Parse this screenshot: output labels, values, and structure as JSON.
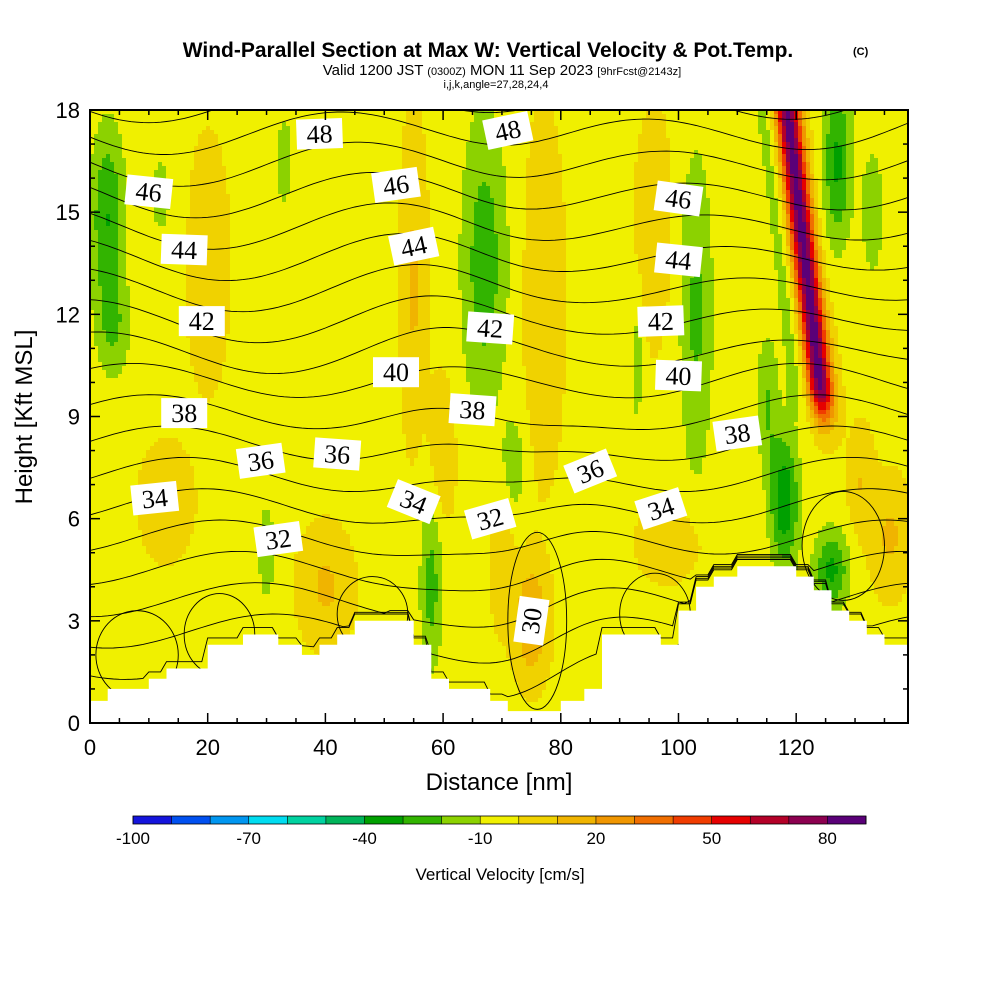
{
  "chart_data": {
    "type": "heatmap",
    "title": "Wind-Parallel Section at Max W: Vertical Velocity & Pot.Temp.",
    "title_mark": "(C)",
    "subtitle_parts": [
      "Valid 1200 JST",
      "(0300Z)",
      "MON 11 Sep 2023",
      "[9hrFcst@2143z]"
    ],
    "subtitle2": "i,j,k,angle=27,28,24,4",
    "xlabel": "Distance [nm]",
    "ylabel": "Height [Kft MSL]",
    "xlim": [
      0,
      139
    ],
    "ylim": [
      0,
      18
    ],
    "x_ticks": [
      0,
      20,
      40,
      60,
      80,
      100,
      120
    ],
    "y_ticks": [
      0,
      3,
      6,
      9,
      12,
      15,
      18
    ],
    "colorbar": {
      "label": "Vertical Velocity [cm/s]",
      "tick_labels": [
        -100,
        -70,
        -40,
        -10,
        20,
        50,
        80
      ],
      "colors": [
        "#1414dc",
        "#0050f0",
        "#0096f0",
        "#00dcf0",
        "#00d2a0",
        "#00b45a",
        "#00a000",
        "#32b400",
        "#8cd200",
        "#f0f000",
        "#f0d200",
        "#f0b400",
        "#f09600",
        "#f06e00",
        "#f03c00",
        "#e60000",
        "#b40028",
        "#8c0050",
        "#5a0078"
      ],
      "range": [
        -100,
        90
      ]
    },
    "background_velocity_cm_s": -2,
    "vertical_velocity_features": [
      {
        "x": 3,
        "y": 14.8,
        "sx": 3,
        "sy": 2.8,
        "w": -28
      },
      {
        "x": 4,
        "y": 11.5,
        "sx": 3,
        "sy": 1.5,
        "w": -15
      },
      {
        "x": 12,
        "y": 15.5,
        "sx": 3,
        "sy": 2.0,
        "w": -10
      },
      {
        "x": 20,
        "y": 13.5,
        "sx": 3,
        "sy": 3.0,
        "w": 12
      },
      {
        "x": 33,
        "y": 16.5,
        "sx": 1.5,
        "sy": 1.5,
        "w": -15
      },
      {
        "x": 55,
        "y": 13.0,
        "sx": 2,
        "sy": 4.0,
        "w": 14
      },
      {
        "x": 67,
        "y": 13.5,
        "sx": 4,
        "sy": 4.5,
        "w": -24
      },
      {
        "x": 72,
        "y": 7.5,
        "sx": 2,
        "sy": 1.5,
        "w": -15
      },
      {
        "x": 77,
        "y": 12.5,
        "sx": 3,
        "sy": 4.5,
        "w": 12
      },
      {
        "x": 75,
        "y": 3.0,
        "sx": 2.5,
        "sy": 1.5,
        "w": 26
      },
      {
        "x": 70,
        "y": 5.0,
        "sx": 2,
        "sy": 2.0,
        "w": 10
      },
      {
        "x": 60,
        "y": 8.0,
        "sx": 2,
        "sy": 2.0,
        "w": 12
      },
      {
        "x": 58,
        "y": 4.0,
        "sx": 2,
        "sy": 2.5,
        "w": -22
      },
      {
        "x": 30,
        "y": 5.0,
        "sx": 2,
        "sy": 2.0,
        "w": -12
      },
      {
        "x": 40,
        "y": 4.0,
        "sx": 4,
        "sy": 1.5,
        "w": 14
      },
      {
        "x": 13,
        "y": 6.5,
        "sx": 4,
        "sy": 1.5,
        "w": 10
      },
      {
        "x": 93,
        "y": 10.5,
        "sx": 1,
        "sy": 2.0,
        "w": -14
      },
      {
        "x": 103,
        "y": 12.0,
        "sx": 3,
        "sy": 5.0,
        "w": -20
      },
      {
        "x": 99,
        "y": 5.3,
        "sx": 5,
        "sy": 1.0,
        "w": 12
      },
      {
        "x": 96,
        "y": 14.5,
        "sx": 3,
        "sy": 3.0,
        "w": 10
      },
      {
        "x": 115,
        "y": 9.5,
        "sx": 2,
        "sy": 2.0,
        "w": -18
      },
      {
        "x": 118,
        "y": 6.5,
        "sx": 2.5,
        "sy": 2.0,
        "w": -36
      },
      {
        "x": 126,
        "y": 4.5,
        "sx": 3,
        "sy": 1.2,
        "w": -30
      },
      {
        "x": 127,
        "y": 16.5,
        "sx": 2.5,
        "sy": 2.5,
        "w": -30
      },
      {
        "x": 133,
        "y": 15.0,
        "sx": 2,
        "sy": 2.0,
        "w": -16
      },
      {
        "x": 136,
        "y": 5.5,
        "sx": 3,
        "sy": 1.5,
        "w": 14
      },
      {
        "x": 131,
        "y": 7.0,
        "sx": 2,
        "sy": 1.5,
        "w": 12
      }
    ],
    "updraft_core": {
      "x_top": 118.5,
      "y_top": 18,
      "x_bottom": 124,
      "y_bottom": 10,
      "max_cm_s": 88
    },
    "isentropes_K": [
      31,
      32,
      33,
      34,
      35,
      36,
      37,
      38,
      39,
      40,
      41,
      42,
      43,
      44,
      45,
      46,
      47,
      48,
      49
    ],
    "contour_labels": [
      {
        "text": "48",
        "x": 39,
        "y": 17.3,
        "angle": -2
      },
      {
        "text": "48",
        "x": 71,
        "y": 17.4,
        "angle": -12
      },
      {
        "text": "46",
        "x": 10,
        "y": 15.6,
        "angle": 6
      },
      {
        "text": "46",
        "x": 52,
        "y": 15.8,
        "angle": -8
      },
      {
        "text": "46",
        "x": 100,
        "y": 15.4,
        "angle": 8
      },
      {
        "text": "44",
        "x": 16,
        "y": 13.9,
        "angle": 2
      },
      {
        "text": "44",
        "x": 55,
        "y": 14.0,
        "angle": -12
      },
      {
        "text": "44",
        "x": 100,
        "y": 13.6,
        "angle": 6
      },
      {
        "text": "42",
        "x": 19,
        "y": 11.8,
        "angle": 0
      },
      {
        "text": "42",
        "x": 68,
        "y": 11.6,
        "angle": 4
      },
      {
        "text": "42",
        "x": 97,
        "y": 11.8,
        "angle": -2
      },
      {
        "text": "40",
        "x": 52,
        "y": 10.3,
        "angle": 0
      },
      {
        "text": "40",
        "x": 100,
        "y": 10.2,
        "angle": 2
      },
      {
        "text": "38",
        "x": 16,
        "y": 9.1,
        "angle": 0
      },
      {
        "text": "38",
        "x": 65,
        "y": 9.2,
        "angle": 4
      },
      {
        "text": "38",
        "x": 110,
        "y": 8.5,
        "angle": -8
      },
      {
        "text": "36",
        "x": 29,
        "y": 7.7,
        "angle": -8
      },
      {
        "text": "36",
        "x": 42,
        "y": 7.9,
        "angle": 4
      },
      {
        "text": "36",
        "x": 85,
        "y": 7.4,
        "angle": -22
      },
      {
        "text": "34",
        "x": 11,
        "y": 6.6,
        "angle": -6
      },
      {
        "text": "34",
        "x": 55,
        "y": 6.5,
        "angle": 22
      },
      {
        "text": "34",
        "x": 97,
        "y": 6.3,
        "angle": -18
      },
      {
        "text": "32",
        "x": 32,
        "y": 5.4,
        "angle": -8
      },
      {
        "text": "32",
        "x": 68,
        "y": 6.0,
        "angle": -16
      },
      {
        "text": "30",
        "x": 75,
        "y": 3.0,
        "angle": -82
      }
    ],
    "terrain_kft": [
      [
        0,
        0.65
      ],
      [
        3,
        0.65
      ],
      [
        3,
        1.0
      ],
      [
        7,
        1.0
      ],
      [
        7,
        1.0
      ],
      [
        10,
        1.0
      ],
      [
        10,
        1.3
      ],
      [
        13,
        1.3
      ],
      [
        13,
        1.6
      ],
      [
        20,
        1.6
      ],
      [
        20,
        2.3
      ],
      [
        26,
        2.3
      ],
      [
        26,
        2.6
      ],
      [
        32,
        2.6
      ],
      [
        32,
        2.3
      ],
      [
        36,
        2.3
      ],
      [
        36,
        2.0
      ],
      [
        39,
        2.0
      ],
      [
        39,
        2.3
      ],
      [
        42,
        2.3
      ],
      [
        42,
        2.6
      ],
      [
        45,
        2.6
      ],
      [
        45,
        3.0
      ],
      [
        55,
        3.0
      ],
      [
        55,
        2.3
      ],
      [
        58,
        2.3
      ],
      [
        58,
        1.3
      ],
      [
        61,
        1.3
      ],
      [
        61,
        1.0
      ],
      [
        68,
        1.0
      ],
      [
        68,
        0.65
      ],
      [
        71,
        0.65
      ],
      [
        71,
        0.35
      ],
      [
        80,
        0.35
      ],
      [
        80,
        0.65
      ],
      [
        84,
        0.65
      ],
      [
        84,
        1.0
      ],
      [
        87,
        1.0
      ],
      [
        87,
        2.6
      ],
      [
        97,
        2.6
      ],
      [
        97,
        2.3
      ],
      [
        100,
        2.3
      ],
      [
        100,
        3.3
      ],
      [
        103,
        3.3
      ],
      [
        103,
        4.0
      ],
      [
        106,
        4.0
      ],
      [
        106,
        4.3
      ],
      [
        110,
        4.3
      ],
      [
        110,
        4.6
      ],
      [
        120,
        4.6
      ],
      [
        120,
        4.3
      ],
      [
        123,
        4.3
      ],
      [
        123,
        3.9
      ],
      [
        126,
        3.9
      ],
      [
        126,
        3.3
      ],
      [
        129,
        3.3
      ],
      [
        129,
        3.0
      ],
      [
        132,
        3.0
      ],
      [
        132,
        2.6
      ],
      [
        135,
        2.6
      ],
      [
        135,
        2.3
      ],
      [
        139,
        2.3
      ]
    ]
  }
}
